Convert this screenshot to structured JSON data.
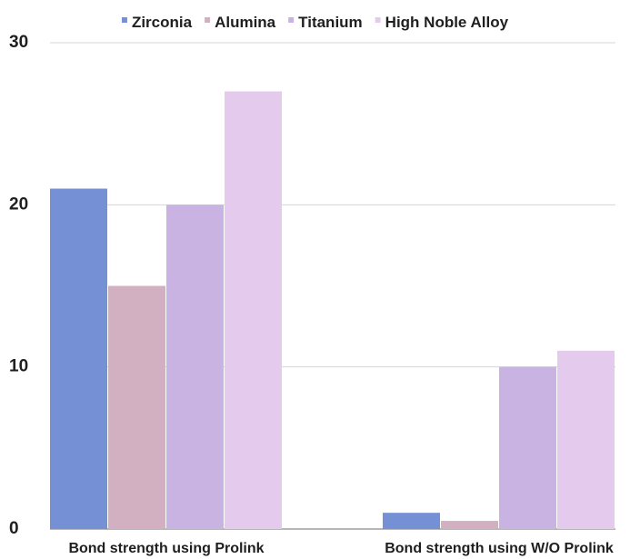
{
  "chart_data": {
    "type": "bar",
    "categories": [
      "Bond strength using Prolink",
      "Bond strength using W/O Prolink"
    ],
    "series": [
      {
        "name": "Zirconia",
        "values": [
          21,
          1
        ],
        "color": "#7590d4"
      },
      {
        "name": "Alumina",
        "values": [
          15,
          0.5
        ],
        "color": "#d2b0c1"
      },
      {
        "name": "Titanium",
        "values": [
          20,
          10
        ],
        "color": "#c8b3e3"
      },
      {
        "name": "High Noble Alloy",
        "values": [
          27,
          11
        ],
        "color": "#e4cbee"
      }
    ],
    "y_ticks": [
      "0",
      "10",
      "20",
      "30"
    ],
    "ylim": [
      0,
      30
    ],
    "grid": true,
    "legend_position": "top"
  }
}
